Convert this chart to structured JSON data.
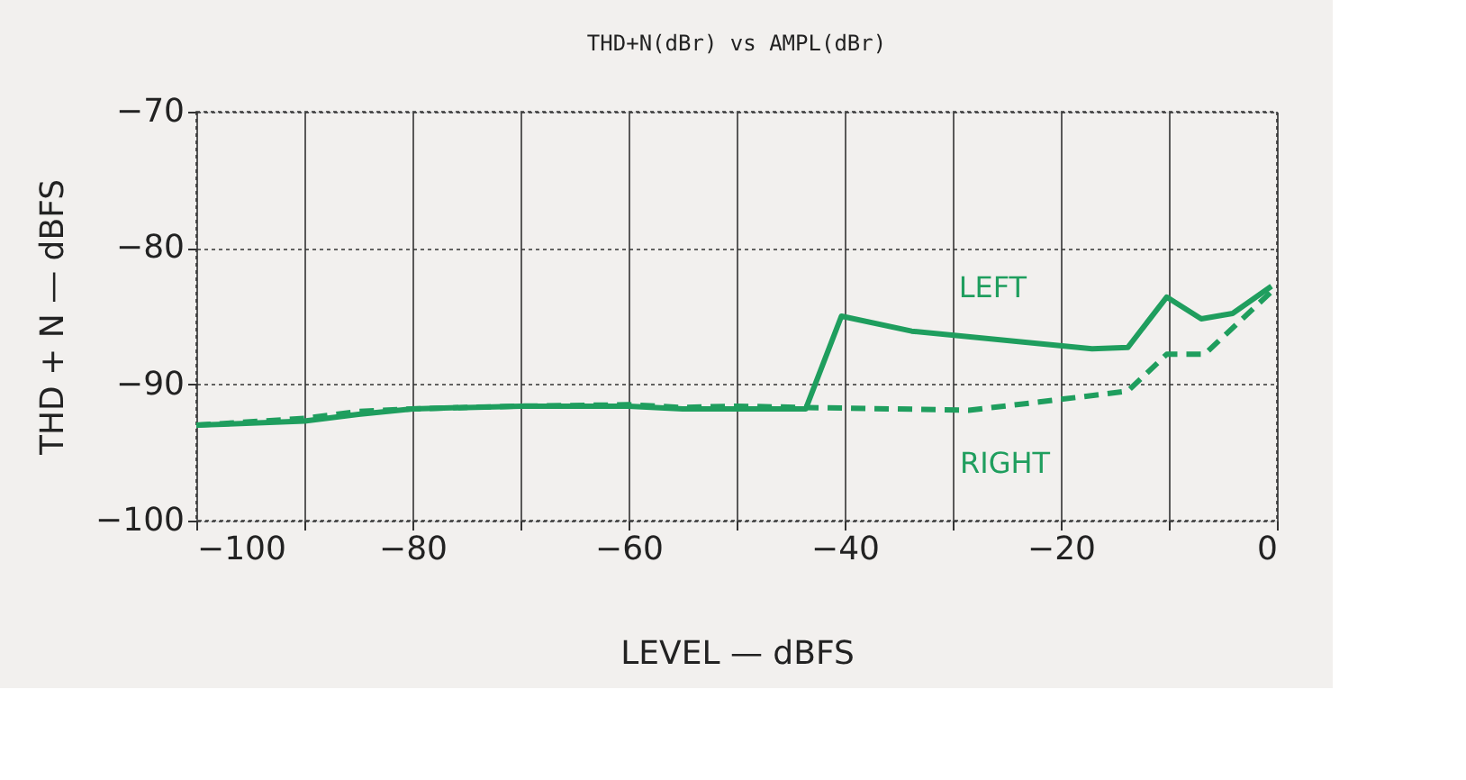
{
  "chart_data": {
    "type": "line",
    "title": "THD+N(dBr) vs AMPL(dBr)",
    "xlabel": "LEVEL — dBFS",
    "ylabel": "THD + N — dBFS",
    "xlim": [
      -100,
      0
    ],
    "ylim": [
      -100,
      -70
    ],
    "xticks": [
      -100,
      {
        "value": -90,
        "label": null
      },
      -80,
      {
        "value": -70,
        "label": null
      },
      -60,
      {
        "value": -50,
        "label": null
      },
      -40,
      {
        "value": -30,
        "label": null
      },
      -20,
      {
        "value": -10,
        "label": null
      },
      0
    ],
    "yticks": [
      -100,
      -90,
      -80,
      -70
    ],
    "grid": true,
    "legend": false,
    "marker": "none",
    "series": [
      {
        "name": "LEFT",
        "color": "#1f9e5e",
        "line_style": "solid",
        "x": [
          -100,
          -90,
          -85,
          -80,
          -70,
          -60,
          -55,
          -50,
          -43.6,
          -40.3,
          -33.8,
          -17.1,
          -13.8,
          -10.2,
          -7.0,
          -4.1,
          -0.5
        ],
        "values": [
          -93.0,
          -92.7,
          -92.2,
          -91.8,
          -91.6,
          -91.6,
          -91.8,
          -91.8,
          -91.8,
          -85.0,
          -86.1,
          -87.4,
          -87.3,
          -83.6,
          -85.2,
          -84.8,
          -82.8
        ]
      },
      {
        "name": "RIGHT",
        "color": "#1f9e5e",
        "line_style": "dashed",
        "x": [
          -100,
          -90,
          -85,
          -80,
          -70,
          -60,
          -55,
          -50,
          -43.6,
          -28.5,
          -22,
          -13.8,
          -10.2,
          -6.7,
          -0.5
        ],
        "values": [
          -93.0,
          -92.5,
          -92.0,
          -91.8,
          -91.6,
          -91.5,
          -91.7,
          -91.6,
          -91.7,
          -91.9,
          -91.3,
          -90.5,
          -87.8,
          -87.8,
          -83.2
        ]
      }
    ]
  }
}
